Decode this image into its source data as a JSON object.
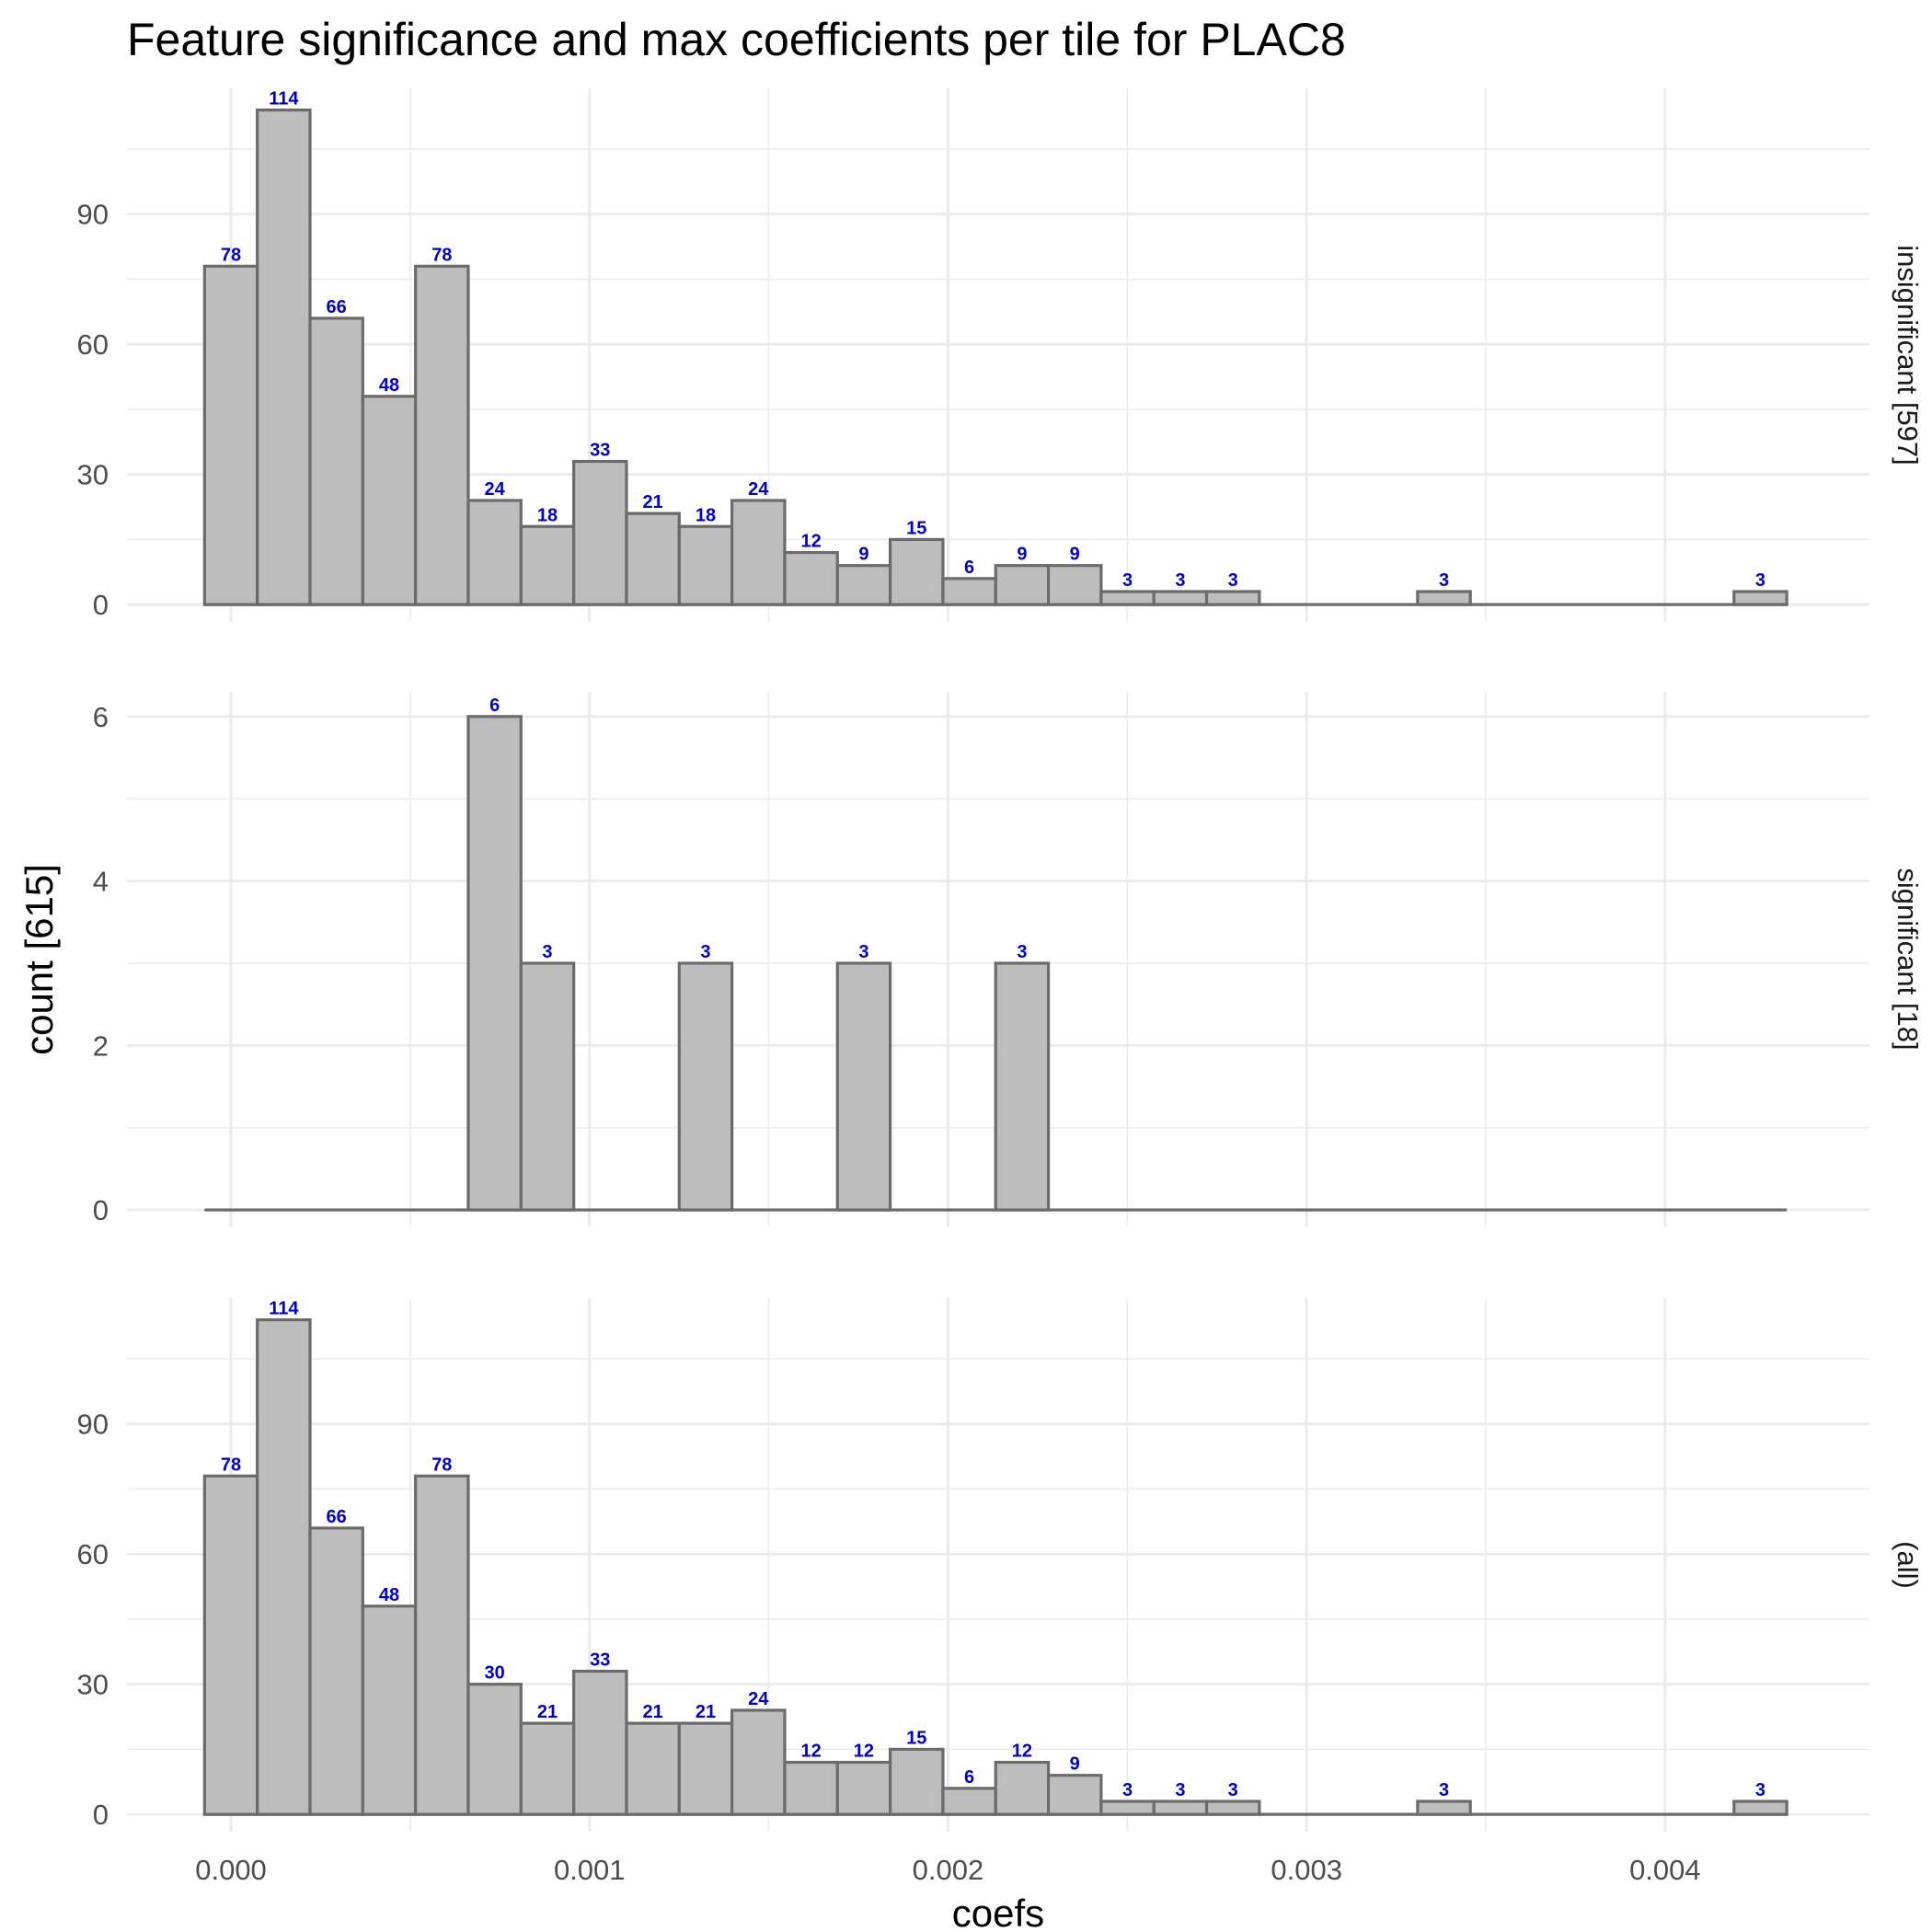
{
  "chart_data": {
    "type": "bar",
    "title": "Feature significance and max coefficients per tile for PLAC8",
    "xlabel": "coefs",
    "ylabel": "count [615]",
    "xlim": [
      -0.00029,
      0.00457
    ],
    "x_ticks": [
      0.0,
      0.001,
      0.002,
      0.003,
      0.004
    ],
    "x_tick_labels": [
      "0.000",
      "0.001",
      "0.002",
      "0.003",
      "0.004"
    ],
    "bin_width": 0.0001471,
    "bin_centers": [
      0.0,
      0.0001471,
      0.0002942,
      0.0004413,
      0.0005884,
      0.0007355,
      0.0008826,
      0.0010297,
      0.0011768,
      0.0013239,
      0.001471,
      0.0016181,
      0.0017652,
      0.0019123,
      0.0020594,
      0.0022065,
      0.0023536,
      0.0025007,
      0.0026478,
      0.0027949,
      0.002942,
      0.0030891,
      0.0032362,
      0.0033833,
      0.0035304,
      0.0036775,
      0.0038246,
      0.0039717,
      0.0041188,
      0.0042659
    ],
    "panels": [
      {
        "label": "insignificant [597]",
        "y_ticks": [
          0,
          30,
          60,
          90
        ],
        "ylim": [
          -4,
          119
        ],
        "values": [
          78,
          114,
          66,
          48,
          78,
          24,
          18,
          33,
          21,
          18,
          24,
          12,
          9,
          15,
          6,
          9,
          9,
          3,
          3,
          3,
          0,
          0,
          0,
          3,
          0,
          0,
          0,
          0,
          0,
          3
        ]
      },
      {
        "label": "significant [18]",
        "y_ticks": [
          0,
          2,
          4,
          6
        ],
        "ylim": [
          -0.2,
          6.3
        ],
        "values": [
          0,
          0,
          0,
          0,
          0,
          6,
          3,
          0,
          0,
          3,
          0,
          0,
          3,
          0,
          0,
          3,
          0,
          0,
          0,
          0,
          0,
          0,
          0,
          0,
          0,
          0,
          0,
          0,
          0,
          0
        ]
      },
      {
        "label": "(all)",
        "y_ticks": [
          0,
          30,
          60,
          90
        ],
        "ylim": [
          -4,
          119
        ],
        "values": [
          78,
          114,
          66,
          48,
          78,
          30,
          21,
          33,
          21,
          21,
          24,
          12,
          12,
          15,
          6,
          12,
          9,
          3,
          3,
          3,
          0,
          0,
          0,
          3,
          0,
          0,
          0,
          0,
          0,
          3
        ]
      }
    ],
    "bar_fill": "#bdbdbd",
    "bar_outline": "#6b6b6b",
    "label_color": "#0000cc"
  }
}
